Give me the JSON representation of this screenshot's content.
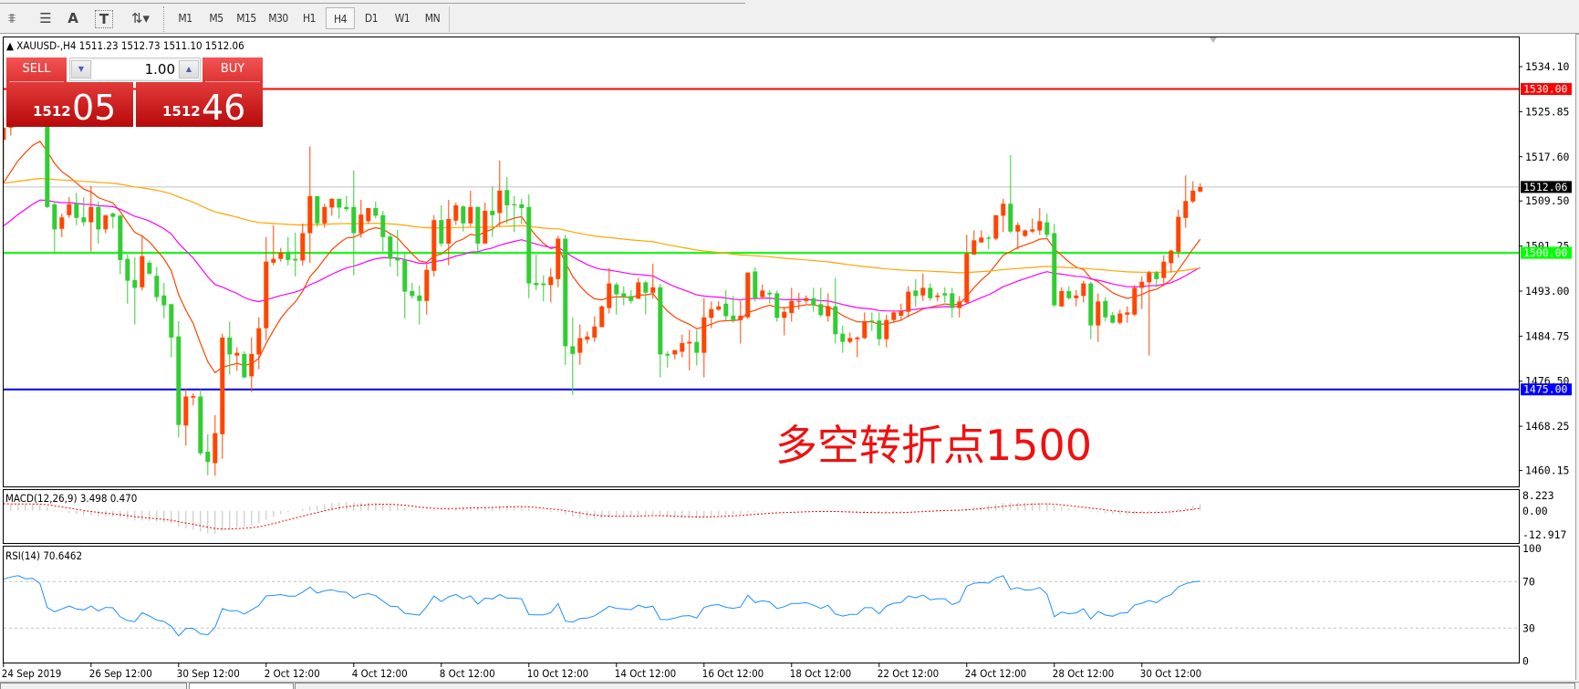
{
  "toolbar": {
    "tools": [
      {
        "name": "fibo-expansion-icon",
        "glyph": "⩨"
      },
      {
        "name": "fibo-channel-icon",
        "glyph": "☰"
      },
      {
        "name": "text-icon",
        "glyph": "A"
      },
      {
        "name": "text-label-icon",
        "glyph": "T"
      },
      {
        "name": "arrows-icon",
        "glyph": "⇅▾"
      }
    ],
    "timeframes": [
      "M1",
      "M5",
      "M15",
      "M30",
      "H1",
      "H4",
      "D1",
      "W1",
      "MN"
    ],
    "active_timeframe": "H4"
  },
  "chart": {
    "header": "▲ XAUUSD-,H4  1511.23 1512.73 1511.10 1512.06",
    "trade_panel": {
      "sell_label": "SELL",
      "buy_label": "BUY",
      "lot": "1.00",
      "sell_price_small": "1512",
      "sell_price_big": "05",
      "buy_price_small": "1512",
      "buy_price_big": "46"
    },
    "annotation": "多空转折点1500",
    "macd_label": "MACD(12,26,9) 3.498 0.470",
    "rsi_label": "RSI(14) 70.6462"
  },
  "chart_data": {
    "type": "candlestick",
    "symbol": "XAUUSD-",
    "timeframe": "H4",
    "ylim": [
      1456.5,
      1538.0
    ],
    "price_ticks": [
      "1534.10",
      "1525.85",
      "1517.60",
      "1509.50",
      "1501.25",
      "1493.00",
      "1484.75",
      "1476.50",
      "1468.25",
      "1460.15"
    ],
    "x_tick_labels": [
      {
        "label": "24 Sep 2019",
        "bar": 0
      },
      {
        "label": "26 Sep 12:00",
        "bar": 12
      },
      {
        "label": "30 Sep 12:00",
        "bar": 24
      },
      {
        "label": "2 Oct 12:00",
        "bar": 36
      },
      {
        "label": "4 Oct 12:00",
        "bar": 48
      },
      {
        "label": "8 Oct 12:00",
        "bar": 60
      },
      {
        "label": "10 Oct 12:00",
        "bar": 72
      },
      {
        "label": "14 Oct 12:00",
        "bar": 84
      },
      {
        "label": "16 Oct 12:00",
        "bar": 96
      },
      {
        "label": "18 Oct 12:00",
        "bar": 108
      },
      {
        "label": "22 Oct 12:00",
        "bar": 120
      },
      {
        "label": "24 Oct 12:00",
        "bar": 132
      },
      {
        "label": "28 Oct 12:00",
        "bar": 144
      },
      {
        "label": "30 Oct 12:00",
        "bar": 156
      }
    ],
    "horizontal_lines": [
      {
        "price": 1530.0,
        "label": "1530.00",
        "color": "#ff0000"
      },
      {
        "price": 1500.0,
        "label": "1500.00",
        "color": "#00ff00"
      },
      {
        "price": 1475.0,
        "label": "1475.00",
        "color": "#0000ff"
      }
    ],
    "current_price": {
      "price": 1512.06,
      "label": "1512.06",
      "color": "#000000"
    },
    "colors": {
      "bull": "#ff4500",
      "bear": "#32cd32",
      "ma_fast": "#ff4500",
      "ma_mid": "#ff00ff",
      "ma_slow": "#ffa500",
      "rsi": "#1e90ff",
      "macd_signal": "#ff0000",
      "macd_hist": "#c0c0c0"
    },
    "ohlc": [
      [
        1520.7,
        1525.0,
        1515.4,
        1522.9
      ],
      [
        1522.9,
        1527.0,
        1521.5,
        1526.0
      ],
      [
        1526.0,
        1530.0,
        1524.5,
        1528.0
      ],
      [
        1528.0,
        1531.0,
        1525.0,
        1526.5
      ],
      [
        1526.5,
        1529.0,
        1524.5,
        1527.0
      ],
      [
        1527.0,
        1528.5,
        1524.0,
        1524.5
      ],
      [
        1524.5,
        1525.0,
        1508.2,
        1508.4
      ],
      [
        1508.9,
        1509.5,
        1500.2,
        1504.3
      ],
      [
        1504.4,
        1507.2,
        1502.9,
        1506.5
      ],
      [
        1506.9,
        1510.2,
        1506.4,
        1508.9
      ],
      [
        1509.0,
        1511.0,
        1505.1,
        1506.4
      ],
      [
        1506.5,
        1510.2,
        1504.9,
        1505.6
      ],
      [
        1505.6,
        1512.2,
        1500.2,
        1508.4
      ],
      [
        1508.4,
        1509.4,
        1501.7,
        1504.3
      ],
      [
        1504.3,
        1506.9,
        1503.6,
        1506.9
      ],
      [
        1507.2,
        1507.4,
        1504.5,
        1506.6
      ],
      [
        1506.8,
        1507.0,
        1496.1,
        1498.7
      ],
      [
        1498.9,
        1499.7,
        1490.7,
        1494.9
      ],
      [
        1495.0,
        1499.2,
        1486.9,
        1493.6
      ],
      [
        1493.7,
        1503.3,
        1493.1,
        1499.4
      ],
      [
        1498.2,
        1498.6,
        1496.0,
        1496.2
      ],
      [
        1495.8,
        1497.4,
        1491.1,
        1491.9
      ],
      [
        1492.2,
        1494.5,
        1488.0,
        1490.4
      ],
      [
        1490.6,
        1490.7,
        1480.9,
        1484.5
      ],
      [
        1484.7,
        1487.5,
        1466.2,
        1468.5
      ],
      [
        1468.4,
        1475.2,
        1464.7,
        1473.7
      ],
      [
        1473.5,
        1474.3,
        1472.1,
        1473.8
      ],
      [
        1473.7,
        1475.0,
        1462.9,
        1463.3
      ],
      [
        1463.6,
        1466.8,
        1459.3,
        1461.7
      ],
      [
        1461.5,
        1470.3,
        1459.2,
        1467.0
      ],
      [
        1466.8,
        1485.2,
        1462.3,
        1484.5
      ],
      [
        1484.5,
        1487.4,
        1477.7,
        1481.4
      ],
      [
        1481.2,
        1482.7,
        1478.4,
        1481.7
      ],
      [
        1481.5,
        1482.0,
        1477.0,
        1477.2
      ],
      [
        1477.4,
        1484.5,
        1474.5,
        1481.5
      ],
      [
        1481.4,
        1488.2,
        1478.7,
        1486.2
      ],
      [
        1486.2,
        1502.9,
        1484.0,
        1498.4
      ],
      [
        1498.2,
        1505.1,
        1497.7,
        1498.9
      ],
      [
        1498.9,
        1500.9,
        1498.4,
        1500.1
      ],
      [
        1500.2,
        1502.9,
        1497.7,
        1498.7
      ],
      [
        1498.9,
        1503.7,
        1495.7,
        1498.6
      ],
      [
        1498.6,
        1505.4,
        1497.7,
        1503.6
      ],
      [
        1503.6,
        1519.5,
        1498.2,
        1510.4
      ],
      [
        1510.4,
        1510.4,
        1504.8,
        1505.4
      ],
      [
        1505.4,
        1509.0,
        1504.6,
        1508.4
      ],
      [
        1508.3,
        1510.0,
        1506.8,
        1509.9
      ],
      [
        1509.9,
        1509.9,
        1506.3,
        1508.3
      ],
      [
        1508.4,
        1510.4,
        1507.6,
        1508.0
      ],
      [
        1508.4,
        1515.1,
        1495.9,
        1503.6
      ],
      [
        1503.6,
        1509.7,
        1502.8,
        1507.0
      ],
      [
        1505.8,
        1508.2,
        1505.3,
        1508.2
      ],
      [
        1508.2,
        1509.4,
        1506.3,
        1506.8
      ],
      [
        1506.9,
        1507.7,
        1500.2,
        1502.9
      ],
      [
        1503.0,
        1503.7,
        1497.4,
        1498.9
      ],
      [
        1499.1,
        1504.2,
        1495.7,
        1498.6
      ],
      [
        1498.7,
        1500.1,
        1488.0,
        1492.9
      ],
      [
        1493.0,
        1494.5,
        1491.6,
        1492.1
      ],
      [
        1492.2,
        1494.0,
        1486.9,
        1491.2
      ],
      [
        1491.2,
        1497.9,
        1488.7,
        1496.9
      ],
      [
        1496.7,
        1506.9,
        1495.7,
        1506.0
      ],
      [
        1506.0,
        1508.7,
        1501.1,
        1501.7
      ],
      [
        1501.7,
        1509.7,
        1497.7,
        1506.2
      ],
      [
        1505.9,
        1509.2,
        1505.1,
        1508.7
      ],
      [
        1508.5,
        1508.7,
        1503.9,
        1505.4
      ],
      [
        1505.4,
        1511.4,
        1504.9,
        1508.4
      ],
      [
        1508.4,
        1508.5,
        1499.9,
        1501.7
      ],
      [
        1501.7,
        1509.2,
        1501.7,
        1507.7
      ],
      [
        1507.7,
        1512.2,
        1502.9,
        1506.9
      ],
      [
        1507.3,
        1516.9,
        1504.8,
        1511.4
      ],
      [
        1511.5,
        1513.9,
        1505.4,
        1508.7
      ],
      [
        1508.9,
        1510.4,
        1503.8,
        1508.7
      ],
      [
        1508.9,
        1509.9,
        1505.3,
        1508.2
      ],
      [
        1508.4,
        1510.7,
        1491.7,
        1494.4
      ],
      [
        1494.5,
        1499.7,
        1493.2,
        1494.1
      ],
      [
        1494.4,
        1495.9,
        1491.1,
        1494.1
      ],
      [
        1494.1,
        1497.2,
        1490.9,
        1495.6
      ],
      [
        1495.2,
        1503.1,
        1493.7,
        1502.6
      ],
      [
        1502.6,
        1503.3,
        1479.5,
        1482.9
      ],
      [
        1482.9,
        1488.2,
        1474.0,
        1481.5
      ],
      [
        1481.7,
        1486.9,
        1479.5,
        1484.4
      ],
      [
        1484.1,
        1485.6,
        1483.4,
        1484.7
      ],
      [
        1484.5,
        1488.4,
        1483.7,
        1486.5
      ],
      [
        1486.4,
        1490.4,
        1486.4,
        1490.2
      ],
      [
        1489.9,
        1497.2,
        1488.9,
        1494.4
      ],
      [
        1494.2,
        1494.6,
        1488.7,
        1492.4
      ],
      [
        1492.6,
        1493.9,
        1490.4,
        1491.9
      ],
      [
        1492.1,
        1493.2,
        1490.7,
        1491.2
      ],
      [
        1491.6,
        1495.4,
        1491.6,
        1494.6
      ],
      [
        1494.6,
        1494.9,
        1488.7,
        1492.7
      ],
      [
        1492.7,
        1498.0,
        1491.6,
        1493.7
      ],
      [
        1493.7,
        1494.3,
        1477.2,
        1481.4
      ],
      [
        1481.5,
        1482.0,
        1479.0,
        1481.2
      ],
      [
        1481.4,
        1482.2,
        1480.5,
        1482.2
      ],
      [
        1481.9,
        1485.0,
        1480.9,
        1483.5
      ],
      [
        1483.4,
        1485.9,
        1478.5,
        1483.7
      ],
      [
        1483.7,
        1485.9,
        1479.4,
        1481.7
      ],
      [
        1481.7,
        1491.7,
        1477.2,
        1488.2
      ],
      [
        1488.1,
        1491.1,
        1486.2,
        1489.7
      ],
      [
        1489.6,
        1491.2,
        1489.4,
        1490.2
      ],
      [
        1490.7,
        1493.2,
        1487.6,
        1488.4
      ],
      [
        1488.5,
        1492.1,
        1487.2,
        1487.7
      ],
      [
        1487.7,
        1491.2,
        1483.4,
        1488.5
      ],
      [
        1488.2,
        1496.4,
        1487.9,
        1496.4
      ],
      [
        1496.6,
        1497.4,
        1491.1,
        1491.7
      ],
      [
        1491.9,
        1494.2,
        1491.6,
        1493.1
      ],
      [
        1492.7,
        1493.2,
        1490.7,
        1492.4
      ],
      [
        1492.6,
        1493.1,
        1487.4,
        1488.1
      ],
      [
        1488.1,
        1490.1,
        1484.9,
        1489.2
      ],
      [
        1489.0,
        1493.6,
        1487.4,
        1491.2
      ],
      [
        1491.1,
        1492.7,
        1489.6,
        1491.2
      ],
      [
        1491.2,
        1492.2,
        1490.7,
        1491.7
      ],
      [
        1491.7,
        1493.6,
        1489.2,
        1490.4
      ],
      [
        1490.6,
        1493.6,
        1488.2,
        1488.6
      ],
      [
        1488.4,
        1492.6,
        1487.4,
        1490.2
      ],
      [
        1490.2,
        1495.4,
        1483.4,
        1485.1
      ],
      [
        1485.2,
        1486.7,
        1481.7,
        1483.7
      ],
      [
        1483.7,
        1485.4,
        1483.4,
        1484.4
      ],
      [
        1484.2,
        1484.7,
        1480.9,
        1484.5
      ],
      [
        1484.4,
        1489.1,
        1484.2,
        1487.4
      ],
      [
        1487.6,
        1489.1,
        1485.7,
        1487.4
      ],
      [
        1487.6,
        1489.1,
        1483.0,
        1484.2
      ],
      [
        1484.2,
        1488.7,
        1482.7,
        1487.7
      ],
      [
        1487.7,
        1489.4,
        1487.2,
        1489.1
      ],
      [
        1488.5,
        1490.7,
        1487.7,
        1489.4
      ],
      [
        1489.2,
        1493.9,
        1488.2,
        1492.9
      ],
      [
        1493.1,
        1495.2,
        1490.1,
        1492.1
      ],
      [
        1492.2,
        1496.2,
        1491.2,
        1493.6
      ],
      [
        1493.6,
        1494.4,
        1491.2,
        1491.7
      ],
      [
        1491.9,
        1492.7,
        1491.1,
        1492.2
      ],
      [
        1492.6,
        1493.7,
        1490.9,
        1492.2
      ],
      [
        1492.6,
        1493.6,
        1488.1,
        1489.9
      ],
      [
        1489.9,
        1492.1,
        1488.2,
        1491.1
      ],
      [
        1490.9,
        1503.3,
        1490.6,
        1499.9
      ],
      [
        1499.7,
        1504.1,
        1499.6,
        1502.3
      ],
      [
        1501.9,
        1504.1,
        1501.9,
        1502.8
      ],
      [
        1502.8,
        1503.1,
        1500.7,
        1502.6
      ],
      [
        1502.6,
        1506.9,
        1502.3,
        1506.9
      ],
      [
        1506.8,
        1509.9,
        1503.8,
        1509.0
      ],
      [
        1509.0,
        1517.9,
        1503.6,
        1503.9
      ],
      [
        1503.9,
        1505.6,
        1500.6,
        1505.1
      ],
      [
        1503.1,
        1504.3,
        1502.9,
        1504.1
      ],
      [
        1503.9,
        1506.3,
        1503.6,
        1504.3
      ],
      [
        1504.1,
        1508.2,
        1503.3,
        1505.8
      ],
      [
        1505.6,
        1507.2,
        1502.8,
        1503.3
      ],
      [
        1503.6,
        1505.3,
        1490.1,
        1490.4
      ],
      [
        1490.2,
        1493.7,
        1490.1,
        1493.0
      ],
      [
        1493.0,
        1493.9,
        1491.4,
        1491.7
      ],
      [
        1491.7,
        1493.2,
        1490.2,
        1492.2
      ],
      [
        1492.1,
        1494.9,
        1490.9,
        1494.4
      ],
      [
        1494.4,
        1494.7,
        1484.2,
        1486.7
      ],
      [
        1486.7,
        1492.6,
        1483.7,
        1491.1
      ],
      [
        1491.2,
        1491.9,
        1487.5,
        1488.2
      ],
      [
        1488.6,
        1489.2,
        1487.1,
        1487.2
      ],
      [
        1487.2,
        1489.6,
        1486.9,
        1488.9
      ],
      [
        1488.7,
        1490.2,
        1487.2,
        1489.1
      ],
      [
        1488.7,
        1494.1,
        1488.4,
        1493.6
      ],
      [
        1493.6,
        1495.7,
        1489.7,
        1494.7
      ],
      [
        1494.6,
        1496.7,
        1481.2,
        1496.4
      ],
      [
        1496.4,
        1496.7,
        1493.7,
        1495.2
      ],
      [
        1495.4,
        1499.6,
        1493.9,
        1498.4
      ],
      [
        1498.1,
        1500.6,
        1496.4,
        1500.4
      ],
      [
        1500.2,
        1507.9,
        1499.1,
        1506.6
      ],
      [
        1506.4,
        1514.2,
        1504.6,
        1509.5
      ],
      [
        1509.4,
        1513.1,
        1509.1,
        1511.4
      ],
      [
        1511.23,
        1512.73,
        1511.1,
        1512.06
      ]
    ],
    "macd": {
      "params": "12,26,9",
      "value": 3.498,
      "signal": 0.47,
      "axis_labels": [
        "8.223",
        "0.00",
        "-12.917"
      ],
      "ylim": [
        -12.917,
        8.223
      ]
    },
    "rsi": {
      "period": 14,
      "value": 70.6462,
      "levels": [
        70,
        30
      ],
      "axis_labels": [
        "100",
        "70",
        "30",
        "0"
      ],
      "ylim": [
        0,
        100
      ]
    }
  }
}
